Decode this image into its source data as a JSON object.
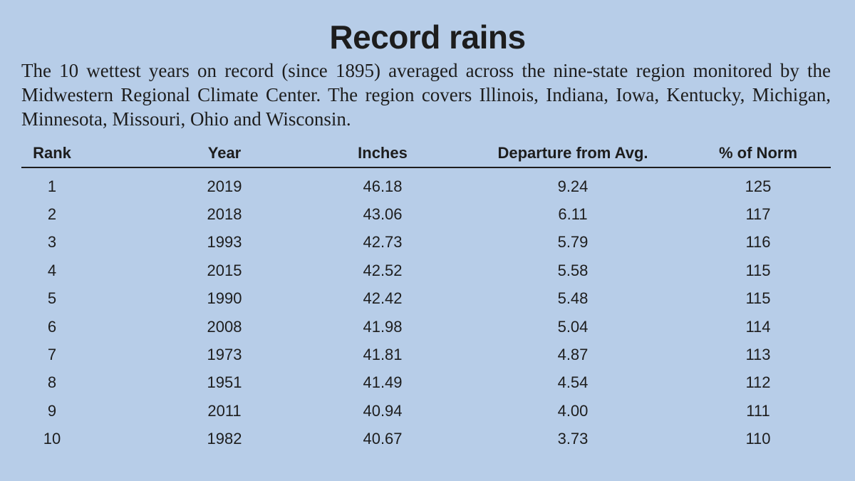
{
  "title": "Record rains",
  "subtitle": "The 10 wettest years on record (since 1895) averaged across the nine-state region monitored by the Midwestern Regional Climate Center. The region covers Illinois, Indiana, Iowa, Kentucky, Michigan, Minnesota, Missouri, Ohio and Wisconsin.",
  "chart_data": {
    "type": "table",
    "title": "Record rains",
    "columns": [
      "Rank",
      "Year",
      "Inches",
      "Departure from Avg.",
      "% of Norm"
    ],
    "rows": [
      [
        "1",
        "2019",
        "46.18",
        "9.24",
        "125"
      ],
      [
        "2",
        "2018",
        "43.06",
        "6.11",
        "117"
      ],
      [
        "3",
        "1993",
        "42.73",
        "5.79",
        "116"
      ],
      [
        "4",
        "2015",
        "42.52",
        "5.58",
        "115"
      ],
      [
        "5",
        "1990",
        "42.42",
        "5.48",
        "115"
      ],
      [
        "6",
        "2008",
        "41.98",
        "5.04",
        "114"
      ],
      [
        "7",
        "1973",
        "41.81",
        "4.87",
        "113"
      ],
      [
        "8",
        "1951",
        "41.49",
        "4.54",
        "112"
      ],
      [
        "9",
        "2011",
        "40.94",
        "4.00",
        "111"
      ],
      [
        "10",
        "1982",
        "40.67",
        "3.73",
        "110"
      ]
    ]
  }
}
